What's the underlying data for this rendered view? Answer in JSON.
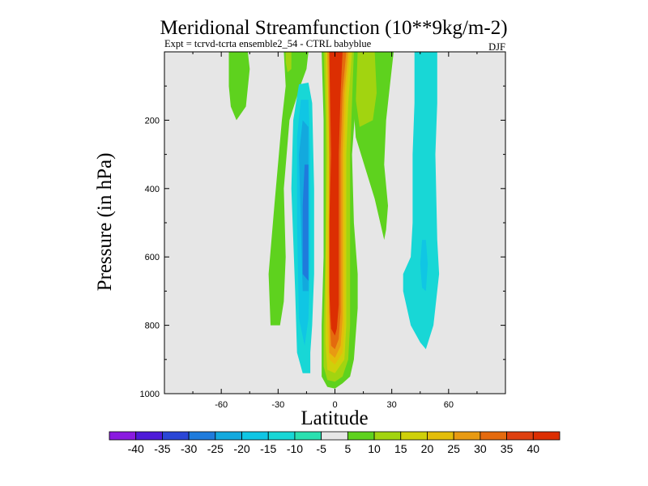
{
  "chart_data": {
    "type": "contour",
    "title": "Meridional Streamfunction (10**9kg/m-2)",
    "subtitle": "Expt = tcrvd-tcrta  ensemble2_54 - CTRL babyblue",
    "season": "DJF",
    "xlabel": "Latitude",
    "ylabel": "Pressure (in hPa)",
    "xlim": [
      -90,
      90
    ],
    "ylim": [
      0,
      1000
    ],
    "y_inverted": true,
    "xticks": [
      -60,
      -30,
      0,
      30,
      60
    ],
    "yticks": [
      200,
      400,
      600,
      800,
      1000
    ],
    "background_color": "#e6e6e6",
    "colorbar": {
      "labels": [
        "-40",
        "-35",
        "-30",
        "-25",
        "-20",
        "-15",
        "-10",
        "-5",
        "5",
        "10",
        "15",
        "20",
        "25",
        "30",
        "35",
        "40"
      ],
      "colors": [
        "#8a1ae0",
        "#4e1ad8",
        "#2a46d6",
        "#1f7bdc",
        "#13a9de",
        "#10c6e4",
        "#18d7d6",
        "#2ae0b0",
        "#e6e6e6",
        "#5ed21e",
        "#a2d410",
        "#cfd00a",
        "#e3bd0a",
        "#e89a12",
        "#e46a0e",
        "#de4010",
        "#dc2e02"
      ]
    },
    "regions": [
      {
        "name": "sh-positive-green",
        "level": "5 to 10",
        "color": "#5ed21e",
        "points": [
          [
            -56,
            0
          ],
          [
            -46,
            0
          ],
          [
            -45,
            50
          ],
          [
            -47,
            160
          ],
          [
            -52,
            200
          ],
          [
            -55,
            160
          ],
          [
            -56,
            100
          ]
        ]
      },
      {
        "name": "tropical-green-lobe",
        "level": "5 to 10",
        "color": "#5ed21e",
        "points": [
          [
            -27,
            0
          ],
          [
            -14,
            0
          ],
          [
            -15,
            50
          ],
          [
            -18,
            95
          ],
          [
            -24,
            200
          ],
          [
            -27,
            400
          ],
          [
            -26,
            600
          ],
          [
            -27,
            730
          ],
          [
            -29,
            800
          ],
          [
            -34,
            800
          ],
          [
            -35,
            650
          ],
          [
            -32,
            450
          ],
          [
            -28,
            200
          ],
          [
            -26,
            100
          ]
        ]
      },
      {
        "name": "cell-yellow-left",
        "level": "10 to 15",
        "color": "#a2d410",
        "points": [
          [
            -26,
            0
          ],
          [
            -23,
            0
          ],
          [
            -23,
            50
          ],
          [
            -25,
            60
          ],
          [
            -26,
            30
          ]
        ]
      },
      {
        "name": "nh-green-band",
        "level": "5 to 10",
        "color": "#5ed21e",
        "points": [
          [
            13,
            0
          ],
          [
            31,
            0
          ],
          [
            29,
            100
          ],
          [
            27,
            200
          ],
          [
            26,
            330
          ],
          [
            28,
            450
          ],
          [
            27,
            520
          ],
          [
            26,
            550
          ],
          [
            21,
            430
          ],
          [
            16,
            340
          ],
          [
            11,
            250
          ],
          [
            9,
            100
          ]
        ]
      },
      {
        "name": "nh-yellow-band",
        "level": "10 to 15",
        "color": "#a2d410",
        "points": [
          [
            12,
            0
          ],
          [
            21,
            0
          ],
          [
            22,
            120
          ],
          [
            20,
            200
          ],
          [
            13,
            220
          ],
          [
            10,
            100
          ]
        ]
      },
      {
        "name": "southern-hadley-cell-outer",
        "level": "-5 to -10",
        "color": "#18d7d6",
        "points": [
          [
            -19,
            95
          ],
          [
            -14,
            90
          ],
          [
            -12,
            150
          ],
          [
            -11,
            400
          ],
          [
            -11,
            650
          ],
          [
            -12,
            800
          ],
          [
            -13,
            880
          ],
          [
            -13,
            940
          ],
          [
            -17,
            940
          ],
          [
            -20,
            880
          ],
          [
            -21,
            700
          ],
          [
            -23,
            400
          ],
          [
            -22,
            200
          ]
        ]
      },
      {
        "name": "southern-hadley-cell-mid",
        "level": "-10 to -15",
        "color": "#10c6e4",
        "points": [
          [
            -18,
            140
          ],
          [
            -14,
            140
          ],
          [
            -13,
            300
          ],
          [
            -13,
            600
          ],
          [
            -14,
            780
          ],
          [
            -16,
            860
          ],
          [
            -19,
            780
          ],
          [
            -20,
            500
          ],
          [
            -20,
            250
          ]
        ]
      },
      {
        "name": "southern-hadley-cell-inner",
        "level": "-15 to -20",
        "color": "#13a9de",
        "points": [
          [
            -17,
            200
          ],
          [
            -14,
            220
          ],
          [
            -14,
            450
          ],
          [
            -14,
            700
          ],
          [
            -17,
            700
          ],
          [
            -18,
            500
          ],
          [
            -19,
            300
          ]
        ]
      },
      {
        "name": "southern-hadley-cell-core",
        "level": "-20 to -25",
        "color": "#1f7bdc",
        "points": [
          [
            -16,
            330
          ],
          [
            -14,
            330
          ],
          [
            -14,
            550
          ],
          [
            -14,
            670
          ],
          [
            -17,
            650
          ],
          [
            -17,
            450
          ]
        ]
      },
      {
        "name": "cell-outer-5",
        "level": "5 to 10",
        "color": "#5ed21e",
        "points": [
          [
            -7,
            0
          ],
          [
            12,
            0
          ],
          [
            11,
            150
          ],
          [
            9,
            300
          ],
          [
            10,
            500
          ],
          [
            12,
            650
          ],
          [
            12,
            750
          ],
          [
            10,
            900
          ],
          [
            8,
            950
          ],
          [
            4,
            970
          ],
          [
            0,
            985
          ],
          [
            -4,
            980
          ],
          [
            -7,
            950
          ],
          [
            -7,
            800
          ],
          [
            -6,
            600
          ],
          [
            -6,
            200
          ]
        ]
      },
      {
        "name": "cell-10",
        "level": "10 to 15",
        "color": "#a2d410",
        "points": [
          [
            -6,
            0
          ],
          [
            10,
            0
          ],
          [
            9,
            150
          ],
          [
            8,
            300
          ],
          [
            8,
            600
          ],
          [
            8,
            800
          ],
          [
            7,
            900
          ],
          [
            4,
            950
          ],
          [
            0,
            965
          ],
          [
            -4,
            960
          ],
          [
            -6,
            920
          ],
          [
            -6,
            800
          ],
          [
            -5,
            600
          ],
          [
            -5,
            200
          ]
        ]
      },
      {
        "name": "cell-15",
        "level": "15 to 20",
        "color": "#cfd00a",
        "points": [
          [
            -5,
            0
          ],
          [
            9,
            0
          ],
          [
            7,
            150
          ],
          [
            6,
            300
          ],
          [
            6,
            600
          ],
          [
            6,
            800
          ],
          [
            5,
            900
          ],
          [
            0,
            940
          ],
          [
            -4,
            930
          ],
          [
            -5,
            850
          ],
          [
            -5,
            600
          ],
          [
            -4,
            300
          ]
        ]
      },
      {
        "name": "cell-20",
        "level": "20 to 25",
        "color": "#e3bd0a",
        "points": [
          [
            -4,
            0
          ],
          [
            8,
            0
          ],
          [
            6,
            120
          ],
          [
            5,
            300
          ],
          [
            5,
            600
          ],
          [
            5,
            800
          ],
          [
            4,
            880
          ],
          [
            0,
            915
          ],
          [
            -3,
            900
          ],
          [
            -4,
            800
          ],
          [
            -4,
            600
          ],
          [
            -3,
            300
          ]
        ]
      },
      {
        "name": "cell-25",
        "level": "25 to 30",
        "color": "#e89a12",
        "points": [
          [
            -4,
            0
          ],
          [
            7,
            0
          ],
          [
            5,
            120
          ],
          [
            4,
            300
          ],
          [
            4,
            600
          ],
          [
            4,
            780
          ],
          [
            3,
            860
          ],
          [
            0,
            895
          ],
          [
            -3,
            880
          ],
          [
            -3,
            780
          ],
          [
            -3,
            600
          ],
          [
            -3,
            300
          ]
        ]
      },
      {
        "name": "cell-30",
        "level": "30 to 35",
        "color": "#e46a0e",
        "points": [
          [
            -3,
            0
          ],
          [
            6,
            0
          ],
          [
            4,
            120
          ],
          [
            3,
            300
          ],
          [
            3,
            600
          ],
          [
            3,
            760
          ],
          [
            2,
            840
          ],
          [
            0,
            870
          ],
          [
            -2,
            860
          ],
          [
            -3,
            760
          ],
          [
            -3,
            600
          ],
          [
            -3,
            300
          ]
        ]
      },
      {
        "name": "cell-core",
        "level": ">40",
        "color": "#dc2e02",
        "points": [
          [
            -3,
            0
          ],
          [
            4,
            0
          ],
          [
            3,
            120
          ],
          [
            2,
            300
          ],
          [
            2,
            600
          ],
          [
            2,
            740
          ],
          [
            1,
            810
          ],
          [
            0,
            830
          ],
          [
            -2,
            810
          ],
          [
            -3,
            700
          ],
          [
            -3,
            500
          ],
          [
            -2,
            300
          ]
        ]
      },
      {
        "name": "nh-ferrel-cell-outer",
        "level": "-5 to -10",
        "color": "#18d7d6",
        "points": [
          [
            42,
            0
          ],
          [
            54,
            0
          ],
          [
            54,
            150
          ],
          [
            53,
            300
          ],
          [
            54,
            550
          ],
          [
            55,
            650
          ],
          [
            52,
            800
          ],
          [
            48,
            870
          ],
          [
            45,
            850
          ],
          [
            40,
            800
          ],
          [
            36,
            700
          ],
          [
            36,
            650
          ],
          [
            40,
            600
          ],
          [
            41,
            500
          ],
          [
            41,
            300
          ],
          [
            42,
            150
          ]
        ]
      },
      {
        "name": "nh-ferrel-cell-inner",
        "level": "-10 to -15",
        "color": "#10c6e4",
        "points": [
          [
            46,
            550
          ],
          [
            48,
            550
          ],
          [
            49,
            620
          ],
          [
            48,
            700
          ],
          [
            46,
            690
          ],
          [
            45,
            620
          ]
        ]
      }
    ]
  }
}
